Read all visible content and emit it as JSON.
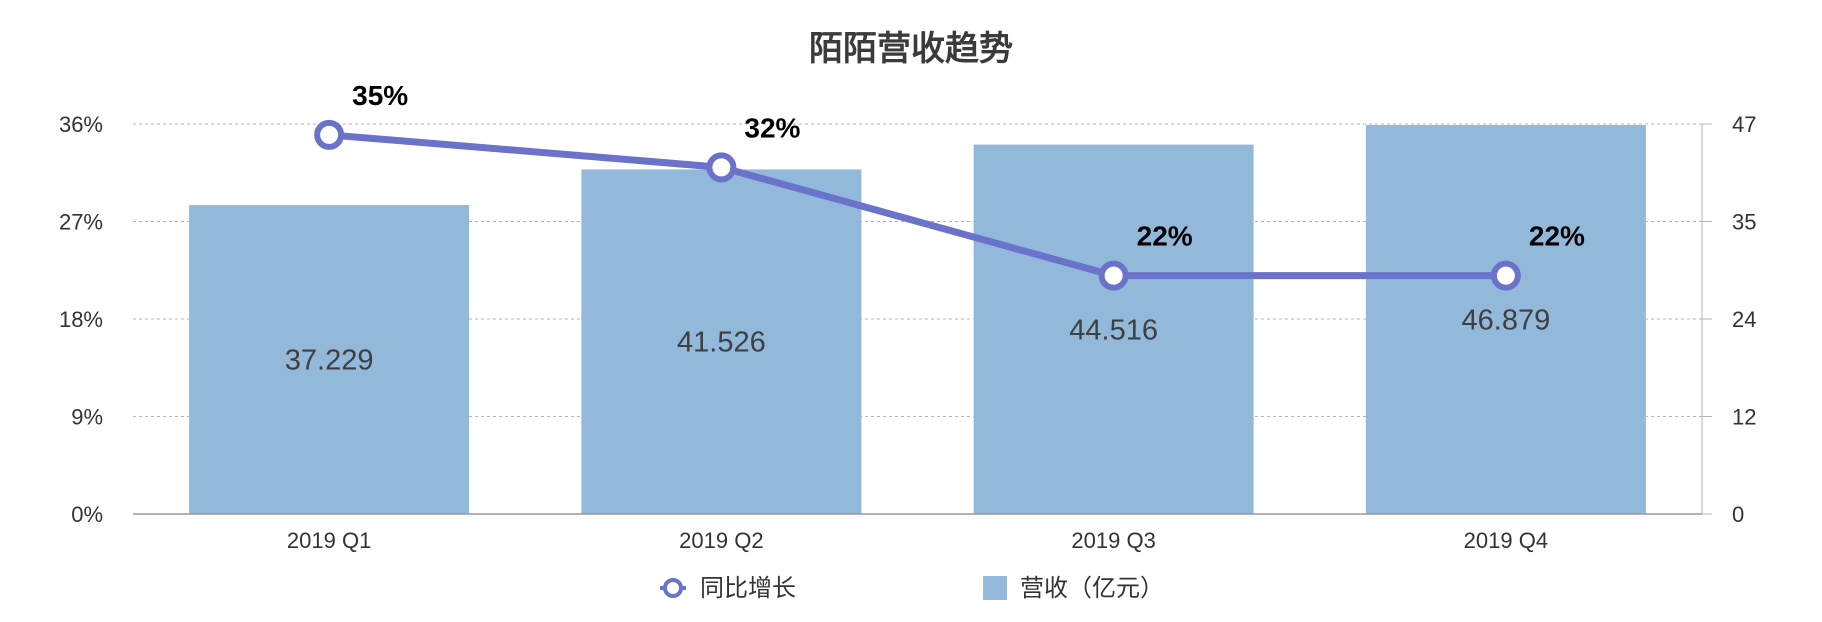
{
  "chart_data": {
    "type": "bar",
    "title": "陌陌营收趋势",
    "categories": [
      "2019 Q1",
      "2019 Q2",
      "2019 Q3",
      "2019 Q4"
    ],
    "series": [
      {
        "name": "营收（亿元）",
        "type": "bar",
        "axis": "right",
        "values": [
          37.229,
          41.526,
          44.516,
          46.879
        ],
        "labels": [
          "37.229",
          "41.526",
          "44.516",
          "46.879"
        ],
        "color": "#93b9da"
      },
      {
        "name": "同比增长",
        "type": "line",
        "axis": "left",
        "values": [
          0.35,
          0.32,
          0.22,
          0.22
        ],
        "labels": [
          "35%",
          "32%",
          "22%",
          "22%"
        ],
        "color": "#6b72c9"
      }
    ],
    "y_left": {
      "ticks": [
        "0%",
        "9%",
        "18%",
        "27%",
        "36%"
      ],
      "tick_values": [
        0,
        0.09,
        0.18,
        0.27,
        0.36
      ],
      "ylim": [
        0,
        0.36
      ]
    },
    "y_right": {
      "ticks": [
        "0",
        "12",
        "24",
        "35",
        "47"
      ],
      "tick_values": [
        0,
        11.75,
        23.5,
        35.25,
        47
      ],
      "ylim": [
        0,
        47
      ]
    },
    "xlabel": "",
    "grid": true,
    "legend": "bottom"
  }
}
